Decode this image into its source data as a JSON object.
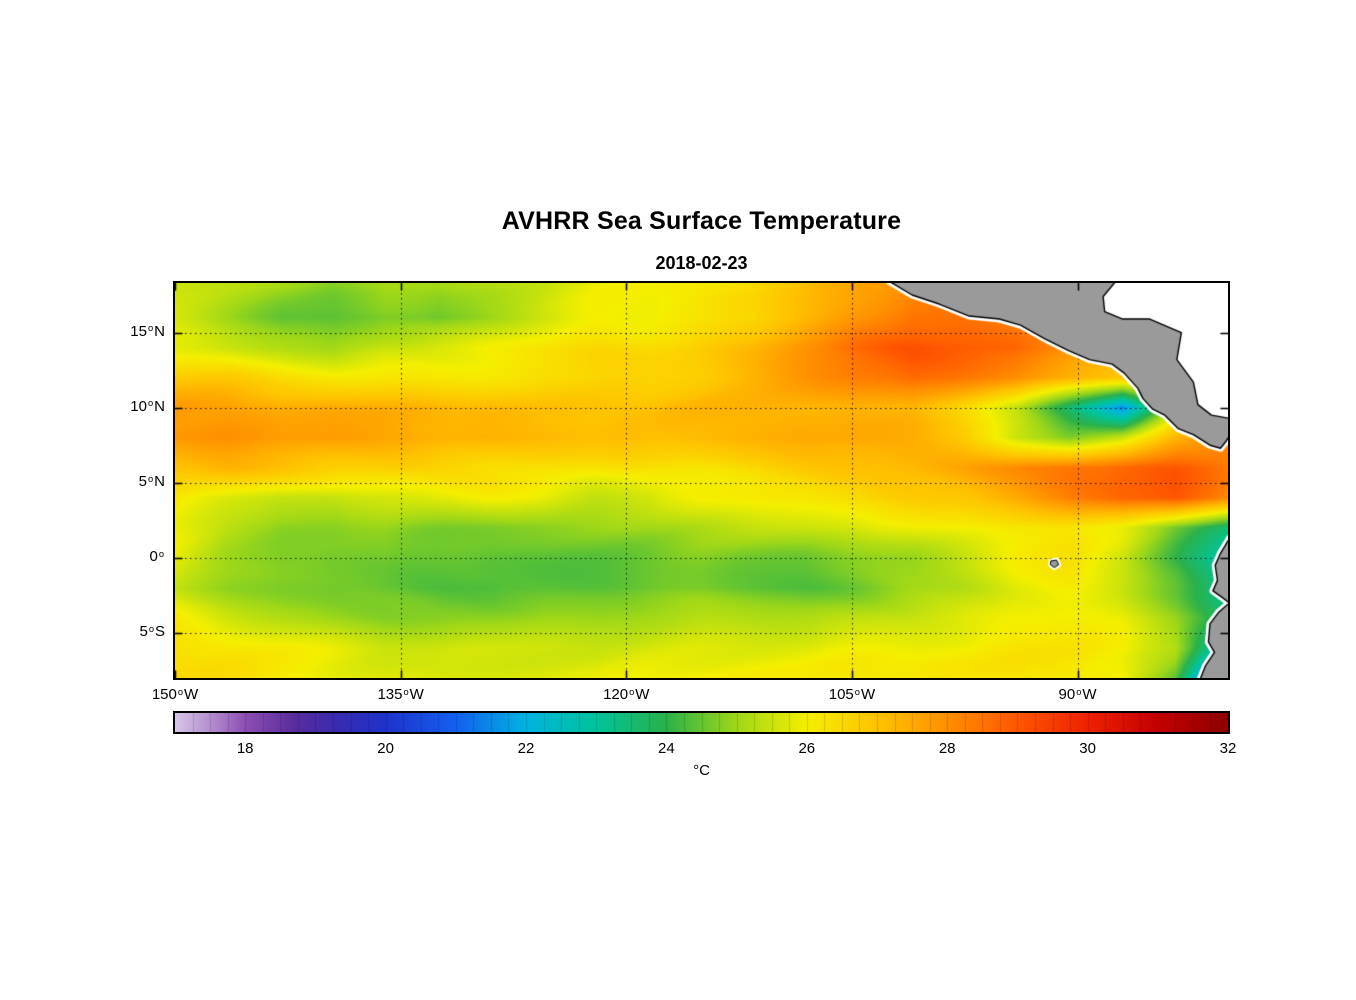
{
  "chart_data": {
    "type": "heatmap",
    "title": "AVHRR Sea Surface Temperature",
    "subtitle": "2018-02-23",
    "colorbar_label": "°C",
    "axes": {
      "lon_min": -150.0,
      "lon_max": -80.0,
      "lat_min": -8.0,
      "lat_max": 18.3,
      "grid": true,
      "x_ticks": [
        {
          "value": -150,
          "num": "150",
          "deg": "o",
          "hem": "W"
        },
        {
          "value": -135,
          "num": "135",
          "deg": "o",
          "hem": "W"
        },
        {
          "value": -120,
          "num": "120",
          "deg": "o",
          "hem": "W"
        },
        {
          "value": -105,
          "num": "105",
          "deg": "o",
          "hem": "W"
        },
        {
          "value": -90,
          "num": "90",
          "deg": "o",
          "hem": "W"
        }
      ],
      "y_ticks": [
        {
          "value": 15,
          "num": "15",
          "deg": "o",
          "hem": "N"
        },
        {
          "value": 10,
          "num": "10",
          "deg": "o",
          "hem": "N"
        },
        {
          "value": 5,
          "num": "5",
          "deg": "o",
          "hem": "N"
        },
        {
          "value": 0,
          "num": "0",
          "deg": "o",
          "hem": ""
        },
        {
          "value": -5,
          "num": "5",
          "deg": "o",
          "hem": "S"
        }
      ]
    },
    "colorbar": {
      "min": 17,
      "max": 32,
      "tick_values": [
        18,
        20,
        22,
        24,
        26,
        28,
        30,
        32
      ],
      "minor_step": 0.25
    },
    "colormap": [
      [
        17.0,
        "#d8c6e8"
      ],
      [
        17.5,
        "#b58fd0"
      ],
      [
        18.0,
        "#8d4fb4"
      ],
      [
        18.7,
        "#5a2d9e"
      ],
      [
        19.3,
        "#3a2bb0"
      ],
      [
        20.0,
        "#1f33cc"
      ],
      [
        21.0,
        "#1460f0"
      ],
      [
        22.0,
        "#00b4e0"
      ],
      [
        23.0,
        "#00c49c"
      ],
      [
        24.0,
        "#2ab24a"
      ],
      [
        25.0,
        "#a0d818"
      ],
      [
        26.0,
        "#f5ef00"
      ],
      [
        27.0,
        "#ffc400"
      ],
      [
        28.0,
        "#ff9000"
      ],
      [
        29.0,
        "#ff5700"
      ],
      [
        30.0,
        "#ee2200"
      ],
      [
        31.0,
        "#c40000"
      ],
      [
        32.0,
        "#8e0000"
      ]
    ],
    "land_color": "#9a9a9a",
    "no_data_color": "#ffffff",
    "grid_lons": [
      -150,
      -146.5,
      -143,
      -139.5,
      -136,
      -132.5,
      -129,
      -125.5,
      -122,
      -118.5,
      -115,
      -111.5,
      -108,
      -104.5,
      -101,
      -97.5,
      -94,
      -90.5,
      -87,
      -83.5,
      -80
    ],
    "grid_lats": [
      18,
      16,
      14,
      12,
      10,
      8,
      6,
      4,
      2,
      0,
      -2,
      -4,
      -6,
      -8
    ],
    "sst": [
      [
        25.5,
        25.2,
        25.0,
        24.8,
        25.2,
        25.0,
        25.3,
        25.6,
        26.0,
        26.0,
        26.3,
        26.5,
        27.0,
        27.5,
        28.0,
        28.3,
        28.0,
        27.5,
        27.2,
        27.0,
        27.0
      ],
      [
        25.5,
        25.0,
        24.5,
        24.5,
        24.7,
        24.5,
        25.0,
        25.5,
        26.0,
        26.0,
        26.2,
        26.5,
        27.2,
        28.0,
        28.6,
        28.5,
        28.2,
        27.6,
        27.2,
        27.0,
        27.0
      ],
      [
        25.8,
        25.5,
        25.3,
        25.0,
        25.5,
        25.8,
        26.0,
        26.2,
        26.5,
        26.5,
        26.8,
        27.2,
        28.0,
        28.7,
        29.1,
        29.0,
        28.8,
        28.0,
        27.5,
        27.3,
        27.2
      ],
      [
        26.8,
        26.8,
        26.5,
        26.3,
        26.3,
        26.2,
        26.3,
        26.5,
        26.5,
        26.6,
        26.8,
        27.2,
        27.8,
        28.3,
        28.6,
        28.3,
        28.0,
        27.5,
        27.0,
        26.8,
        26.8
      ],
      [
        27.8,
        27.8,
        27.5,
        27.5,
        27.3,
        27.2,
        27.2,
        27.0,
        27.0,
        27.0,
        27.2,
        27.3,
        27.3,
        27.5,
        27.3,
        26.5,
        25.5,
        23.5,
        21.5,
        25.5,
        27.5
      ],
      [
        28.0,
        28.0,
        27.8,
        27.8,
        27.6,
        27.5,
        27.4,
        27.2,
        27.0,
        27.0,
        27.2,
        27.3,
        27.5,
        27.5,
        27.3,
        26.8,
        25.5,
        24.8,
        25.5,
        27.2,
        28.2
      ],
      [
        27.0,
        27.2,
        27.0,
        26.8,
        26.8,
        26.6,
        26.5,
        26.5,
        26.3,
        26.3,
        26.3,
        26.5,
        26.8,
        27.0,
        27.2,
        27.5,
        28.0,
        28.5,
        28.8,
        29.0,
        28.5
      ],
      [
        26.3,
        25.8,
        25.4,
        25.3,
        25.5,
        25.8,
        26.0,
        25.8,
        25.4,
        25.5,
        26.0,
        26.2,
        26.3,
        26.5,
        26.8,
        27.0,
        27.5,
        28.2,
        28.8,
        29.0,
        28.0
      ],
      [
        26.0,
        25.3,
        24.9,
        24.8,
        25.0,
        24.8,
        24.7,
        24.8,
        24.9,
        25.0,
        25.2,
        25.4,
        25.5,
        25.6,
        25.8,
        26.0,
        26.2,
        26.3,
        25.8,
        24.5,
        23.5
      ],
      [
        25.8,
        25.0,
        24.6,
        24.5,
        24.6,
        24.4,
        24.3,
        24.4,
        24.5,
        24.6,
        24.8,
        24.7,
        24.6,
        24.8,
        25.0,
        25.5,
        26.0,
        26.2,
        25.5,
        24.0,
        22.5
      ],
      [
        25.5,
        25.0,
        24.7,
        24.5,
        24.4,
        24.3,
        24.2,
        24.3,
        24.4,
        24.5,
        24.6,
        24.5,
        24.4,
        24.6,
        25.0,
        25.3,
        25.8,
        26.0,
        25.5,
        24.5,
        23.0
      ],
      [
        26.0,
        25.5,
        25.2,
        25.0,
        24.8,
        24.7,
        24.8,
        25.0,
        25.0,
        25.2,
        25.3,
        25.2,
        25.2,
        25.4,
        25.6,
        25.8,
        26.0,
        26.0,
        25.8,
        25.0,
        23.5
      ],
      [
        26.3,
        26.2,
        26.0,
        25.8,
        25.5,
        25.4,
        25.5,
        25.6,
        25.6,
        25.7,
        25.8,
        25.8,
        25.8,
        26.0,
        26.0,
        26.0,
        26.2,
        26.2,
        26.0,
        25.2,
        22.0
      ],
      [
        26.5,
        26.4,
        26.2,
        26.0,
        25.8,
        25.7,
        25.8,
        25.8,
        25.8,
        26.0,
        26.0,
        26.0,
        26.0,
        26.2,
        26.2,
        26.2,
        26.3,
        26.3,
        26.0,
        24.5,
        19.5
      ]
    ],
    "land": {
      "central_america_coast": [
        [
          -102.5,
          18.4
        ],
        [
          -101.0,
          17.5
        ],
        [
          -99.2,
          16.9
        ],
        [
          -97.2,
          16.1
        ],
        [
          -95.2,
          15.9
        ],
        [
          -93.8,
          15.5
        ],
        [
          -92.2,
          14.6
        ],
        [
          -90.6,
          13.8
        ],
        [
          -89.2,
          13.2
        ],
        [
          -87.7,
          12.9
        ],
        [
          -86.9,
          12.3
        ],
        [
          -86.0,
          11.3
        ],
        [
          -85.65,
          10.6
        ],
        [
          -85.0,
          9.9
        ],
        [
          -84.2,
          9.5
        ],
        [
          -83.3,
          8.6
        ],
        [
          -82.3,
          8.2
        ],
        [
          -81.2,
          7.5
        ],
        [
          -80.5,
          7.3
        ],
        [
          -80.1,
          7.8
        ],
        [
          -79.8,
          8.3
        ]
      ],
      "central_america_close": [
        [
          -79.0,
          8.6
        ],
        [
          -79.0,
          18.6
        ]
      ],
      "caribbean_coast": [
        [
          -87.3,
          18.6
        ],
        [
          -88.3,
          17.4
        ],
        [
          -88.2,
          16.4
        ],
        [
          -87.0,
          15.9
        ],
        [
          -85.2,
          15.9
        ],
        [
          -83.1,
          15.0
        ],
        [
          -83.4,
          13.2
        ],
        [
          -82.3,
          11.7
        ],
        [
          -82.0,
          10.2
        ],
        [
          -81.1,
          9.5
        ],
        [
          -80.0,
          9.3
        ]
      ],
      "caribbean_close": [
        [
          -79.0,
          9.3
        ],
        [
          -79.0,
          18.6
        ]
      ],
      "south_america_coast": [
        [
          -79.9,
          1.3
        ],
        [
          -80.5,
          0.3
        ],
        [
          -80.85,
          -0.5
        ],
        [
          -80.7,
          -1.5
        ],
        [
          -81.0,
          -2.2
        ],
        [
          -80.3,
          -2.7
        ],
        [
          -79.9,
          -3.0
        ],
        [
          -80.6,
          -3.6
        ],
        [
          -81.2,
          -4.4
        ],
        [
          -81.3,
          -5.6
        ],
        [
          -80.9,
          -6.3
        ],
        [
          -81.5,
          -7.2
        ],
        [
          -81.9,
          -8.2
        ]
      ],
      "south_america_close": [
        [
          -79.0,
          -8.5
        ],
        [
          -79.0,
          1.3
        ]
      ],
      "galapagos": [
        [
          -91.75,
          -0.2
        ],
        [
          -91.4,
          -0.15
        ],
        [
          -91.25,
          -0.45
        ],
        [
          -91.55,
          -0.65
        ],
        [
          -91.8,
          -0.45
        ]
      ]
    }
  }
}
